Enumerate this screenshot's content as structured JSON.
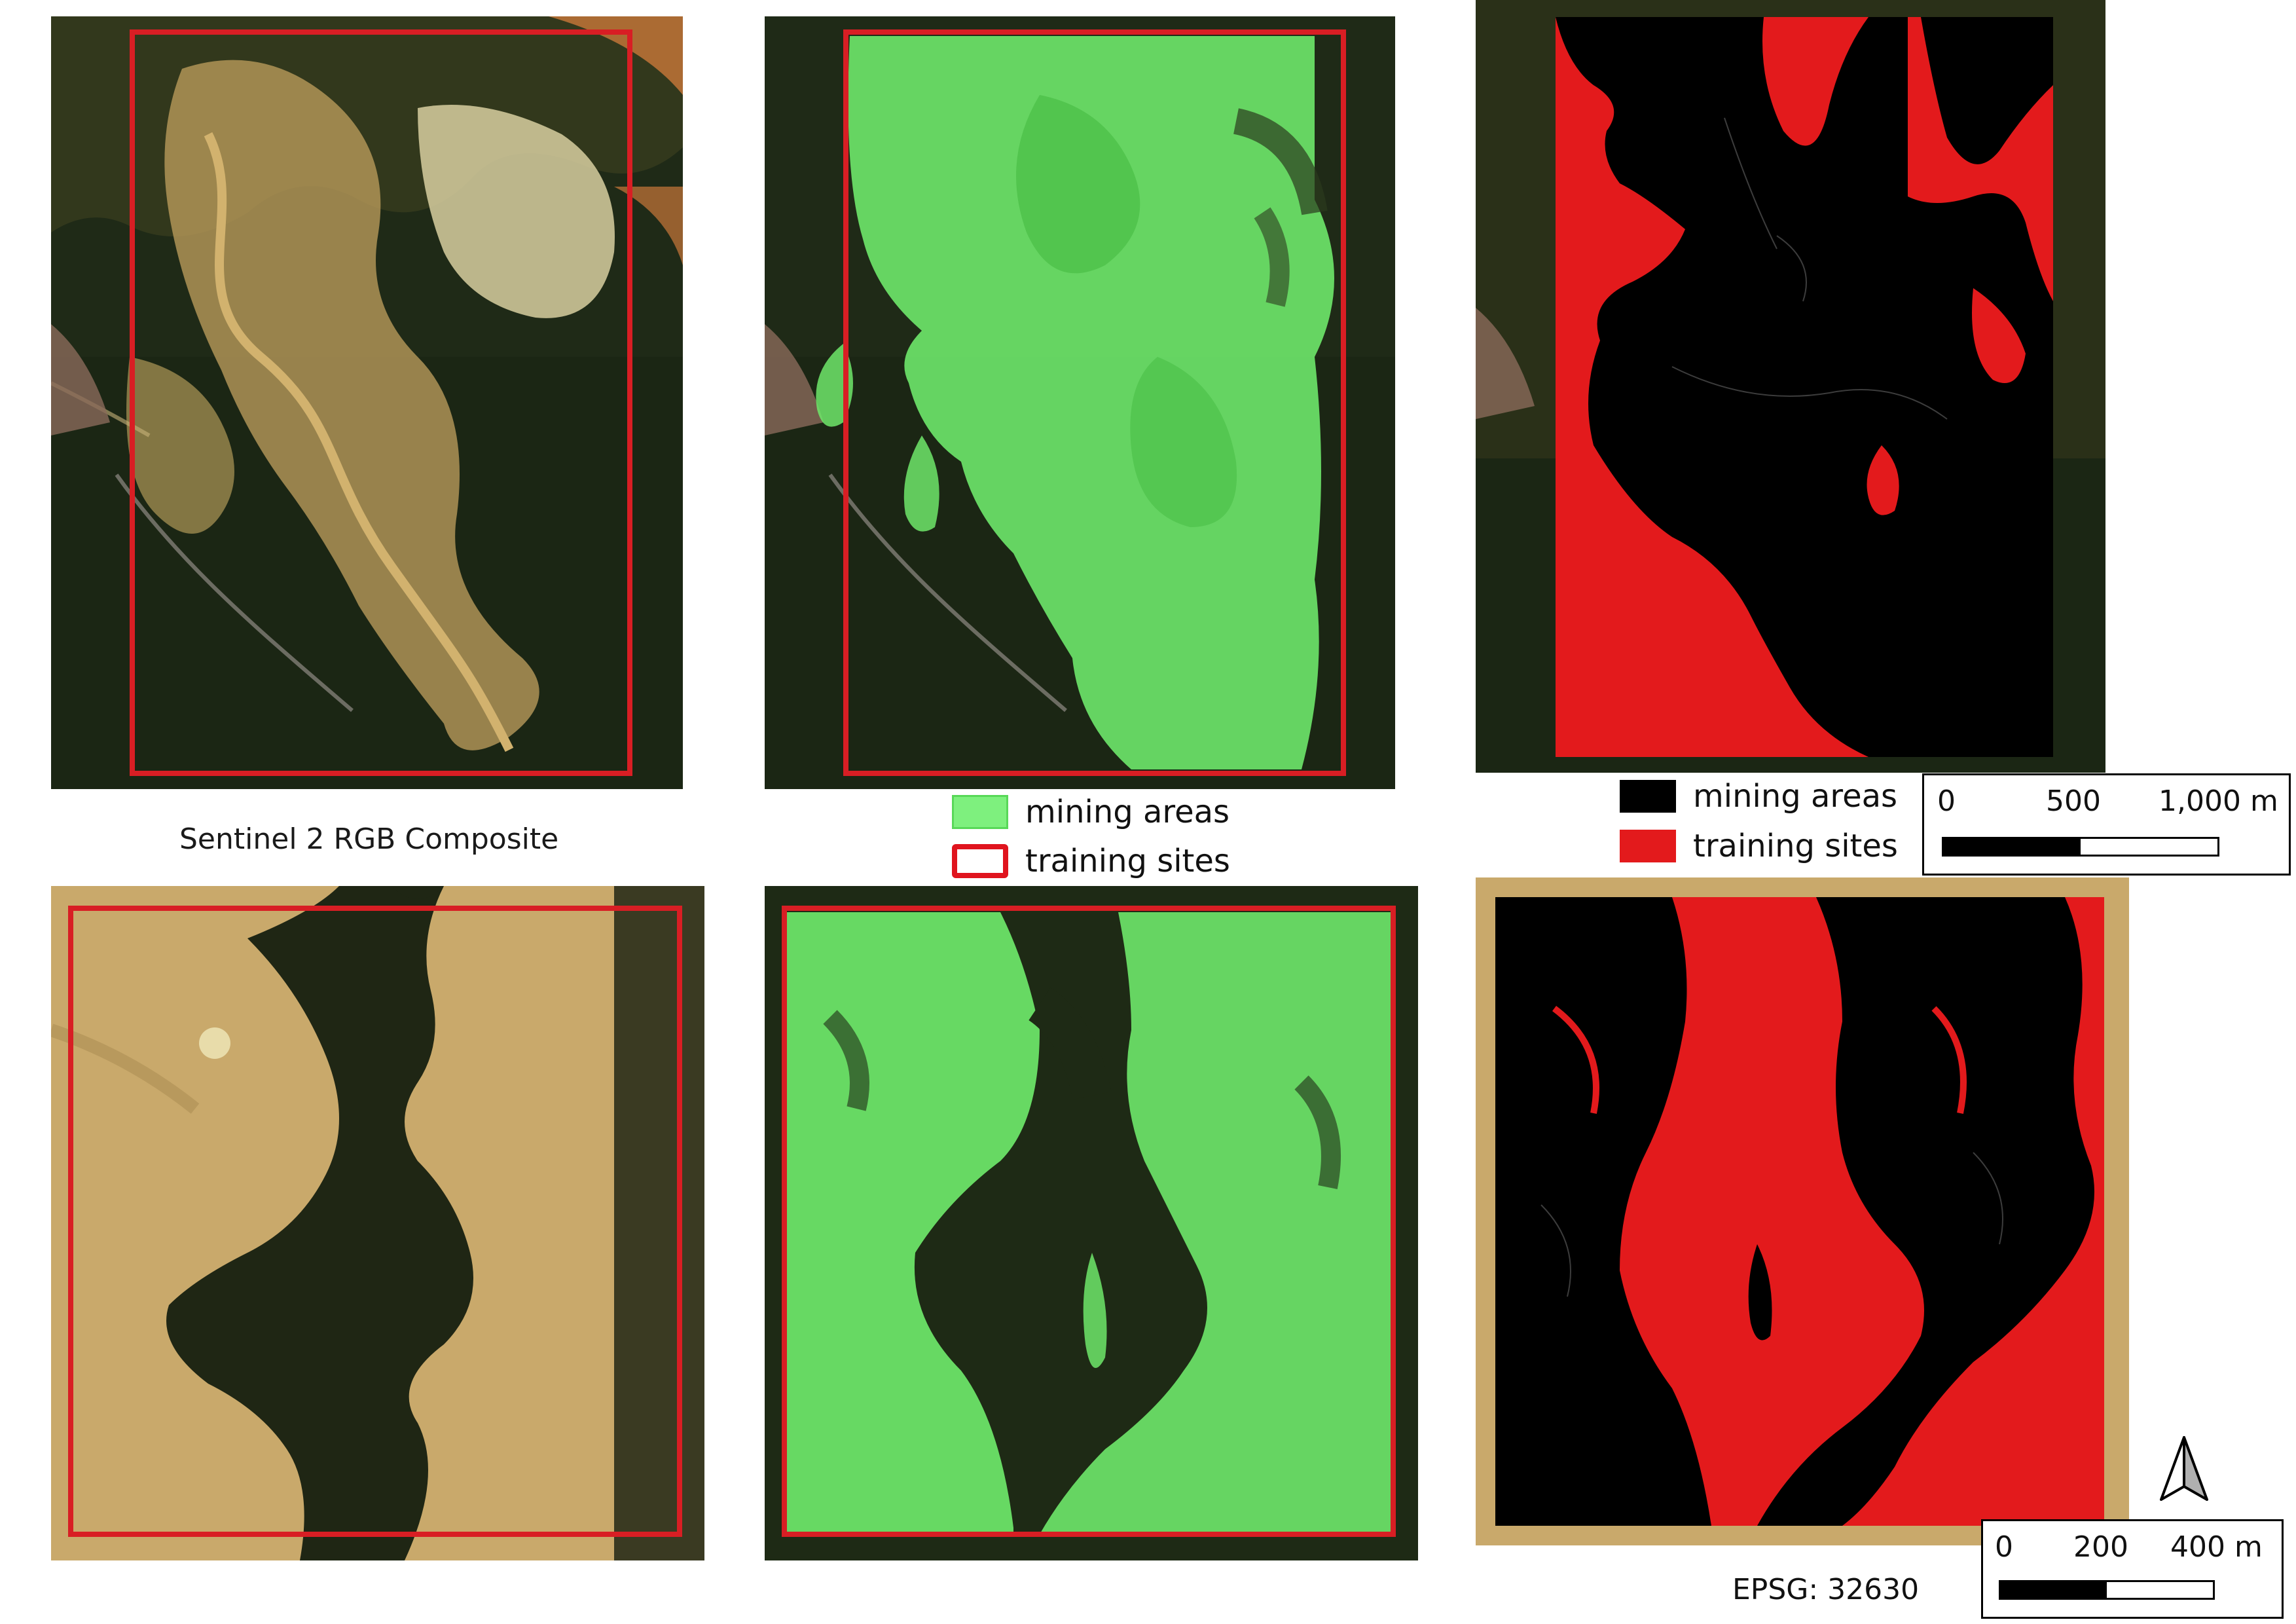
{
  "captions": {
    "rgb": "Sentinel 2 RGB Composite"
  },
  "legend_mid": {
    "mining": "mining areas",
    "training": "training sites",
    "colors": {
      "mining_fill": "#7ef07e",
      "mining_border": "#58d858",
      "training_border": "#e0141e"
    }
  },
  "legend_right": {
    "mining": "mining areas",
    "training": "training sites",
    "colors": {
      "mining": "#000000",
      "training": "#e31a1c"
    }
  },
  "scalebar_top": {
    "labels": [
      "0",
      "500",
      "1,000 m"
    ]
  },
  "scalebar_bottom": {
    "labels": [
      "0",
      "200",
      "400 m"
    ]
  },
  "north_arrow": {
    "icon": "north-arrow-icon"
  },
  "epsg": "EPSG: 32630",
  "panels": {
    "top_rgb": {
      "icon": "satellite-image"
    },
    "top_overlay": {
      "icon": "mining-overlay"
    },
    "top_classified": {
      "icon": "classified-map"
    },
    "bottom_rgb": {
      "icon": "satellite-image"
    },
    "bottom_overlay": {
      "icon": "mining-overlay"
    },
    "bottom_classified": {
      "icon": "classified-map"
    }
  }
}
